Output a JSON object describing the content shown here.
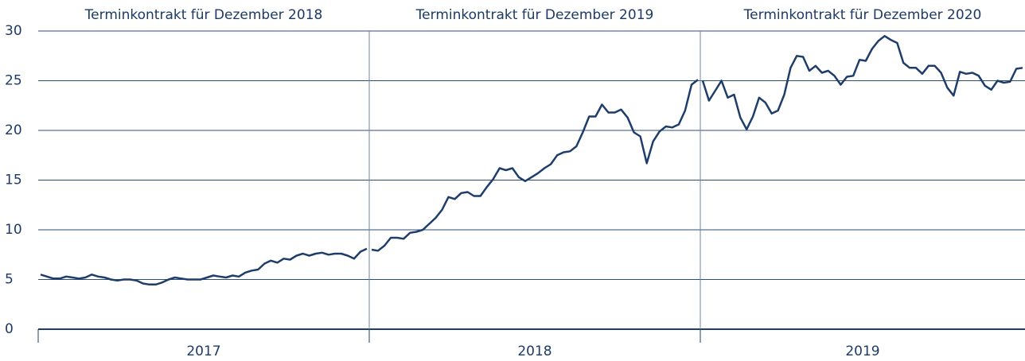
{
  "chart_data": [
    {
      "type": "line",
      "title": "Terminkontrakt für Dezember 2018",
      "xlabel": "2017",
      "color": "#1f3d6b",
      "ylim": [
        0,
        30
      ],
      "yticks": [
        0,
        5,
        10,
        15,
        20,
        25,
        30
      ],
      "grid": true,
      "values": [
        5.5,
        5.3,
        5.1,
        5.1,
        5.3,
        5.2,
        5.1,
        5.2,
        5.5,
        5.3,
        5.2,
        5.0,
        4.9,
        5.0,
        5.0,
        4.9,
        4.6,
        4.5,
        4.5,
        4.7,
        5.0,
        5.2,
        5.1,
        5.0,
        5.0,
        5.0,
        5.2,
        5.4,
        5.3,
        5.2,
        5.4,
        5.3,
        5.7,
        5.9,
        6.0,
        6.6,
        6.9,
        6.7,
        7.1,
        7.0,
        7.4,
        7.6,
        7.4,
        7.6,
        7.7,
        7.5,
        7.6,
        7.6,
        7.4,
        7.1,
        7.8,
        8.1
      ]
    },
    {
      "type": "line",
      "title": "Terminkontrakt für Dezember 2019",
      "xlabel": "2018",
      "color": "#1f3d6b",
      "ylim": [
        0,
        30
      ],
      "values": [
        8.0,
        7.9,
        8.4,
        9.2,
        9.2,
        9.1,
        9.7,
        9.8,
        10.0,
        10.6,
        11.2,
        12.0,
        13.3,
        13.1,
        13.7,
        13.8,
        13.4,
        13.4,
        14.3,
        15.1,
        16.2,
        16.0,
        16.2,
        15.3,
        14.9,
        15.3,
        15.7,
        16.2,
        16.6,
        17.5,
        17.8,
        17.9,
        18.4,
        19.8,
        21.4,
        21.4,
        22.6,
        21.8,
        21.8,
        22.1,
        21.3,
        19.8,
        19.4,
        16.7,
        18.9,
        19.9,
        20.4,
        20.3,
        20.6,
        22.0,
        24.6,
        25.1
      ]
    },
    {
      "type": "line",
      "title": "Terminkontrakt für Dezember 2020",
      "xlabel": "2019",
      "color": "#1f3d6b",
      "ylim": [
        0,
        30
      ],
      "values": [
        25.0,
        23.0,
        24.0,
        25.0,
        23.3,
        23.6,
        21.3,
        20.1,
        21.4,
        23.3,
        22.8,
        21.7,
        22.0,
        23.6,
        26.3,
        27.5,
        27.4,
        26.0,
        26.5,
        25.8,
        26.0,
        25.5,
        24.6,
        25.4,
        25.5,
        27.1,
        27.0,
        28.2,
        29.0,
        29.5,
        29.1,
        28.8,
        26.8,
        26.3,
        26.3,
        25.7,
        26.5,
        26.5,
        25.8,
        24.3,
        23.5,
        25.9,
        25.7,
        25.8,
        25.5,
        24.5,
        24.1,
        25.0,
        24.8,
        24.9,
        26.2,
        26.3
      ]
    }
  ]
}
